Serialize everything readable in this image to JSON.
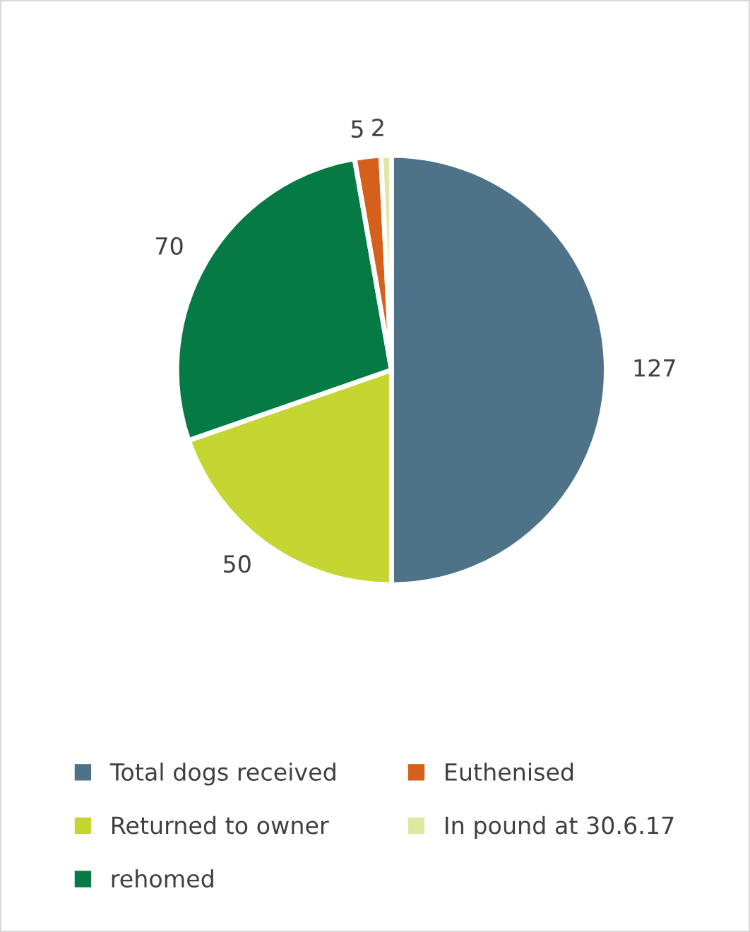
{
  "chart_data": {
    "type": "pie",
    "categories": [
      "Total dogs received",
      "Returned to owner",
      "rehomed",
      "Euthenised",
      "In pound at 30.6.17"
    ],
    "values": [
      127,
      50,
      70,
      5,
      2
    ],
    "colors": [
      "#4e7287",
      "#c5d632",
      "#057a45",
      "#d5601b",
      "#dfe8a3"
    ],
    "data_labels": true,
    "legend": "bottom"
  }
}
